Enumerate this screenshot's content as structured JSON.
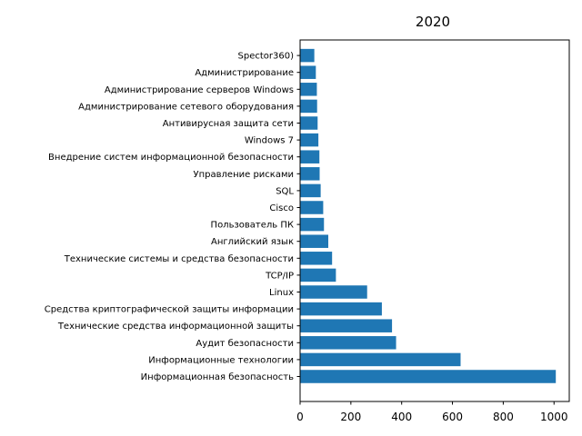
{
  "chart_data": {
    "type": "bar",
    "orientation": "horizontal",
    "title": "2020",
    "xlabel": "",
    "ylabel": "",
    "bar_color": "#1f77b4",
    "xlim": [
      0,
      1060
    ],
    "xticks": [
      0,
      200,
      400,
      600,
      800,
      1000
    ],
    "grid": false,
    "categories": [
      "Информационная безопасность",
      "Информационные технологии",
      "Аудит безопасности",
      "Технические средства информационной защиты",
      "Средства криптографической защиты информации",
      "Linux",
      "TCP/IP",
      "Технические системы и средства безопасности",
      "Английский язык",
      "Пользователь ПК",
      "Cisco",
      "SQL",
      "Управление рисками",
      "Внедрение систем информационной безопасности",
      "Windows 7",
      "Антивирусная защита сети",
      "Администрирование сетевого оборудования",
      "Администрирование серверов Windows",
      "Администрирование",
      "Spector360)"
    ],
    "values": [
      1007,
      632,
      378,
      362,
      322,
      264,
      141,
      126,
      111,
      94,
      91,
      81,
      77,
      76,
      72,
      69,
      67,
      66,
      62,
      56
    ]
  }
}
